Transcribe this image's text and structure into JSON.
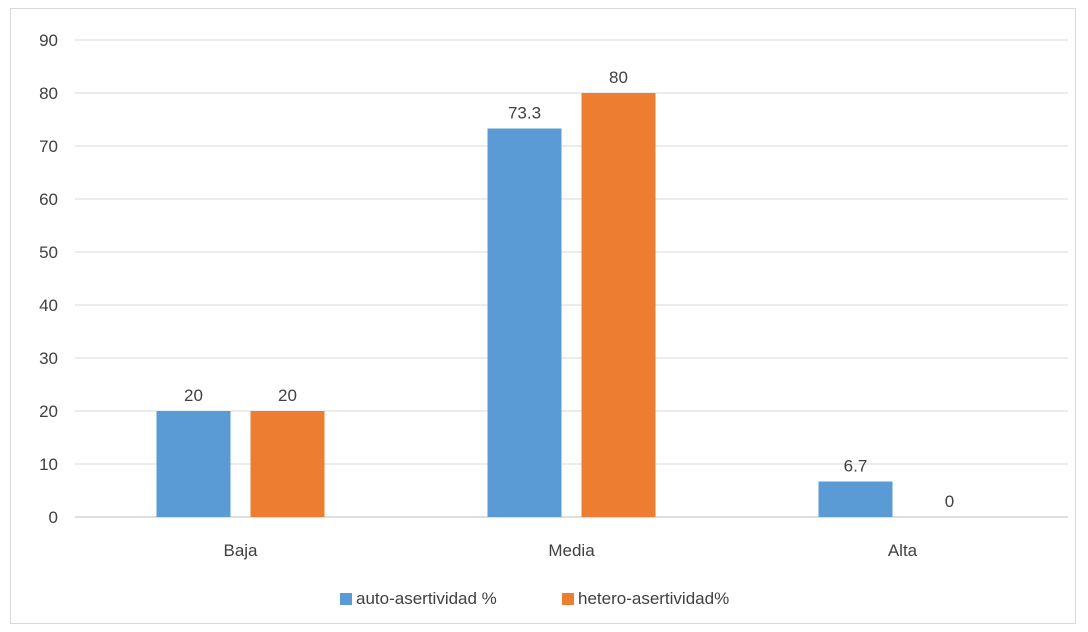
{
  "chart_data": {
    "type": "bar",
    "categories": [
      "Baja",
      "Media",
      "Alta"
    ],
    "series": [
      {
        "name": "auto-asertividad %",
        "values": [
          20,
          73.3,
          6.7
        ],
        "color": "#5b9bd5"
      },
      {
        "name": "hetero-asertividad%",
        "values": [
          20,
          80,
          0
        ],
        "color": "#ed7d31"
      }
    ],
    "data_labels": [
      [
        "20",
        "73.3",
        "6.7"
      ],
      [
        "20",
        "80",
        "0"
      ]
    ],
    "ylim": [
      0,
      90
    ],
    "yticks": [
      0,
      10,
      20,
      30,
      40,
      50,
      60,
      70,
      80,
      90
    ],
    "grid": true,
    "legend_position": "bottom",
    "title": "",
    "xlabel": "",
    "ylabel": ""
  }
}
